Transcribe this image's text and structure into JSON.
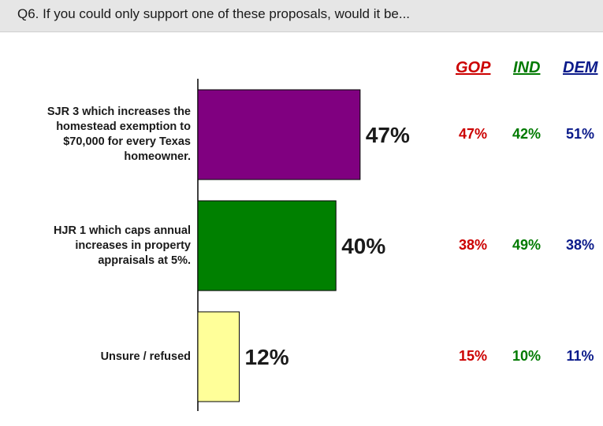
{
  "question": "Q6. If you could only support one of these proposals, would it be...",
  "party_headers": [
    {
      "label": "GOP",
      "color": "#cc0000"
    },
    {
      "label": "IND",
      "color": "#007a00"
    },
    {
      "label": "DEM",
      "color": "#0a1a8a"
    }
  ],
  "chart_data": {
    "type": "bar",
    "orientation": "horizontal",
    "categories": [
      "SJR 3 which increases the homestead exemption to $70,000 for every Texas homeowner.",
      "HJR 1 which caps annual increases in property appraisals at 5%.",
      "Unsure / refused"
    ],
    "category_lines": [
      [
        "SJR 3 which increases the",
        "homestead exemption to",
        "$70,000 for every Texas",
        "homeowner."
      ],
      [
        "HJR 1 which caps annual",
        "increases in property",
        "appraisals at 5%."
      ],
      [
        "Unsure / refused"
      ]
    ],
    "values": [
      47,
      40,
      12
    ],
    "value_labels": [
      "47%",
      "40%",
      "12%"
    ],
    "bar_colors": [
      "#800080",
      "#008000",
      "#ffff99"
    ],
    "xlim": [
      0,
      100
    ],
    "breakdown": [
      {
        "category": "SJR 3",
        "GOP": "47%",
        "IND": "42%",
        "DEM": "51%"
      },
      {
        "category": "HJR 1",
        "GOP": "38%",
        "IND": "49%",
        "DEM": "38%"
      },
      {
        "category": "Unsure / refused",
        "GOP": "15%",
        "IND": "10%",
        "DEM": "11%"
      }
    ]
  }
}
